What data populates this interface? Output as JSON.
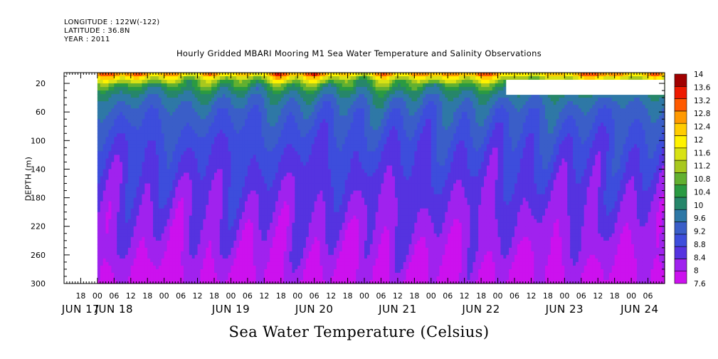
{
  "header": {
    "longitude": "LONGITUDE : 122W(-122)",
    "latitude": "LATITUDE : 36.8N",
    "year": "YEAR : 2011"
  },
  "chart_data": {
    "type": "heatmap",
    "title": "Hourly Gridded MBARI Mooring M1 Sea Water Temperature and Salinity Observations",
    "ylabel": "DEPTH (m)",
    "xlabel": "",
    "variable_label": "Sea Water Temperature (Celsius)",
    "y_reversed": true,
    "ylim": [
      300,
      5
    ],
    "y_ticks": [
      20,
      60,
      100,
      140,
      180,
      220,
      260,
      300
    ],
    "x_hour_range": [
      -12,
      204
    ],
    "x_tick_hours": [
      -6,
      0,
      6,
      12,
      18,
      24,
      30,
      36,
      42,
      48,
      54,
      60,
      66,
      72,
      78,
      84,
      90,
      96,
      102,
      108,
      114,
      120,
      126,
      132,
      138,
      144,
      150,
      156,
      162,
      168,
      174,
      180,
      186,
      192,
      198
    ],
    "x_tick_labels": [
      "18",
      "00",
      "06",
      "12",
      "18",
      "00",
      "06",
      "12",
      "18",
      "00",
      "06",
      "12",
      "18",
      "00",
      "06",
      "12",
      "18",
      "00",
      "06",
      "12",
      "18",
      "00",
      "06",
      "12",
      "18",
      "00",
      "06",
      "12",
      "18",
      "00",
      "06",
      "12",
      "18",
      "00",
      "06"
    ],
    "x_tick_labels_note": "",
    "date_labels": [
      {
        "hour": -6,
        "text": "JUN 17"
      },
      {
        "hour": 6,
        "text": "JUN 18"
      },
      {
        "hour": 48,
        "text": "JUN 19"
      },
      {
        "hour": 78,
        "text": "JUN 20"
      },
      {
        "hour": 108,
        "text": "JUN 21"
      },
      {
        "hour": 138,
        "text": "JUN 22"
      },
      {
        "hour": 168,
        "text": "JUN 23"
      },
      {
        "hour": 195,
        "text": "JUN 24"
      }
    ],
    "data_start_hour": 0,
    "data_end_hour": 204,
    "missing_block": {
      "hour_start": 147,
      "hour_end": 204,
      "depth_start": 15,
      "depth_end": 36
    },
    "depths": [
      5,
      10,
      15,
      20,
      30,
      40,
      50,
      60,
      80,
      100,
      120,
      140,
      160,
      180,
      200,
      220,
      240,
      260,
      280,
      300
    ],
    "mean_profile": [
      13.2,
      12.1,
      11.5,
      10.9,
      10.2,
      9.8,
      9.6,
      9.4,
      9.2,
      9.0,
      8.85,
      8.75,
      8.6,
      8.5,
      8.4,
      8.3,
      8.2,
      8.1,
      7.95,
      7.85
    ],
    "colorbar": {
      "levels": [
        7.6,
        8,
        8.4,
        8.8,
        9.2,
        9.6,
        10,
        10.4,
        10.8,
        11.2,
        11.6,
        12,
        12.4,
        12.8,
        13.2,
        13.6,
        14
      ],
      "labels": [
        "14",
        "13.6",
        "13.2",
        "12.8",
        "12.4",
        "12",
        "11.6",
        "11.2",
        "10.8",
        "10.4",
        "10",
        "9.6",
        "9.2",
        "8.8",
        "8.4",
        "8",
        "7.6"
      ],
      "colors": [
        "#cc11ee",
        "#a022ee",
        "#5533e0",
        "#3d4ddc",
        "#3a5ec8",
        "#2e78a6",
        "#26866a",
        "#2a9a42",
        "#62b030",
        "#a8c81e",
        "#d8e214",
        "#fff200",
        "#ffcc00",
        "#ff9900",
        "#ff5a00",
        "#ee1a00",
        "#a00000"
      ]
    }
  }
}
